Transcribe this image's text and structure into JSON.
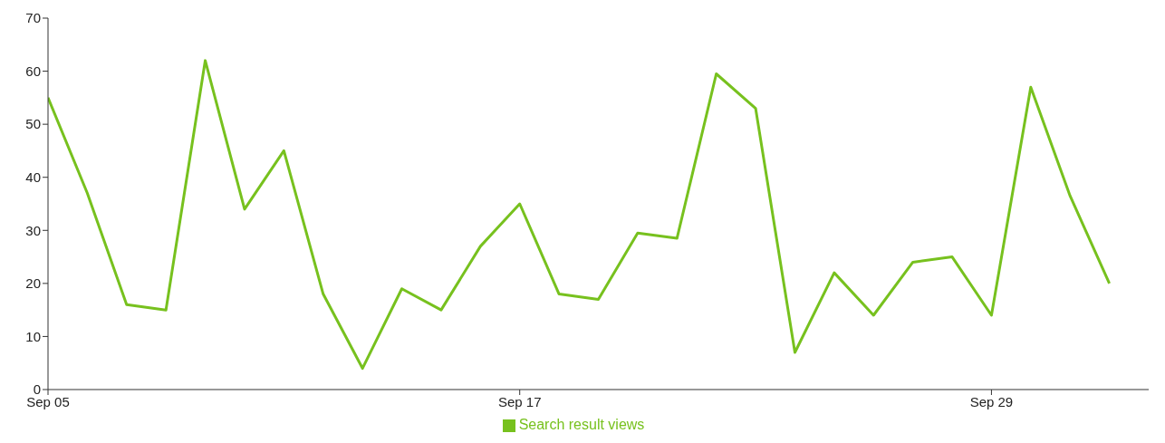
{
  "chart_data": {
    "type": "line",
    "x": [
      "--09-05",
      "--09-06",
      "--09-07",
      "--09-08",
      "--09-09",
      "--09-10",
      "--09-11",
      "--09-12",
      "--09-13",
      "--09-14",
      "--09-15",
      "--09-16",
      "--09-17",
      "--09-18",
      "--09-19",
      "--09-20",
      "--09-21",
      "--09-22",
      "--09-23",
      "--09-24",
      "--09-25",
      "--09-26",
      "--09-27",
      "--09-28",
      "--09-29",
      "--09-30",
      "--10-01",
      "--10-02"
    ],
    "series": [
      {
        "name": "Search result views",
        "color": "#77c11e",
        "values": [
          55,
          37,
          16,
          15,
          62,
          34,
          45,
          18,
          4,
          19,
          15,
          27,
          35,
          18,
          17,
          29.5,
          28.5,
          59.5,
          53,
          7,
          22,
          14,
          24,
          25,
          14,
          57,
          36.5,
          20
        ]
      }
    ],
    "xlim": [
      "--09-05",
      "--10-03"
    ],
    "xticks": [
      {
        "value": "--09-05",
        "label": "Sep 05"
      },
      {
        "value": "--09-17",
        "label": "Sep 17"
      },
      {
        "value": "--09-29",
        "label": "Sep 29"
      }
    ],
    "ylim": [
      0,
      70
    ],
    "yticks": [
      0,
      10,
      20,
      30,
      40,
      50,
      60,
      70
    ],
    "grid": false,
    "legend": "bottom",
    "marker": "none",
    "line_style": "solid"
  }
}
